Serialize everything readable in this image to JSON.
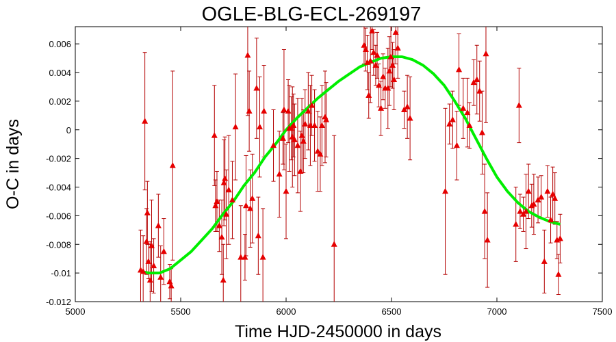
{
  "chart_data": {
    "type": "scatter",
    "title": "OGLE-BLG-ECL-269197",
    "xlabel": "Time HJD-2450000 in days",
    "ylabel": "O-C in days",
    "xlim": [
      5000,
      7500
    ],
    "ylim": [
      -0.012,
      0.0072
    ],
    "xticks": [
      5000,
      5500,
      6000,
      6500,
      7000,
      7500
    ],
    "xtick_labels": [
      "5000",
      "5500",
      "6000",
      "6500",
      "7000",
      "7500"
    ],
    "yticks": [
      -0.012,
      -0.01,
      -0.008,
      -0.006,
      -0.004,
      -0.002,
      0,
      0.002,
      0.004,
      0.006
    ],
    "ytick_labels": [
      "-0.012",
      "-0.01",
      "-0.008",
      "-0.006",
      "-0.004",
      "-0.002",
      "0",
      "0.002",
      "0.004",
      "0.006"
    ],
    "grid": false,
    "colors": {
      "points": "#e60000",
      "errorbars": "#b30000",
      "fit": "#00ee00"
    },
    "series": [
      {
        "kind": "points_with_errorbars",
        "x": [
          5310,
          5322,
          5330,
          5338,
          5342,
          5347,
          5355,
          5362,
          5372,
          5394,
          5405,
          5420,
          5448,
          5455,
          5462,
          5660,
          5665,
          5672,
          5683,
          5695,
          5702,
          5705,
          5710,
          5716,
          5728,
          5745,
          5760,
          5785,
          5805,
          5810,
          5818,
          5825,
          5830,
          5840,
          5860,
          5868,
          5875,
          5890,
          5895,
          5940,
          5968,
          5985,
          5990,
          6000,
          6010,
          6015,
          6025,
          6030,
          6035,
          6040,
          6055,
          6068,
          6075,
          6082,
          6090,
          6105,
          6115,
          6122,
          6135,
          6150,
          6162,
          6170,
          6185,
          6190,
          6228,
          6370,
          6378,
          6385,
          6392,
          6400,
          6408,
          6415,
          6425,
          6432,
          6440,
          6450,
          6460,
          6470,
          6483,
          6490,
          6497,
          6505,
          6512,
          6520,
          6530,
          6560,
          6575,
          6588,
          6755,
          6775,
          6790,
          6810,
          6820,
          6840,
          6860,
          6870,
          6890,
          6905,
          6918,
          6930,
          6942,
          6948,
          6955,
          7090,
          7105,
          7110,
          7125,
          7138,
          7150,
          7165,
          7175,
          7195,
          7210,
          7225,
          7240,
          7255,
          7265,
          7275,
          7285,
          7292,
          7300
        ],
        "y": [
          -0.0098,
          -0.0099,
          0.0006,
          -0.0078,
          -0.0058,
          -0.0092,
          -0.0105,
          -0.0081,
          -0.0095,
          -0.0067,
          -0.0103,
          -0.0085,
          -0.0106,
          -0.0109,
          -0.0025,
          -0.0004,
          -0.0053,
          -0.005,
          -0.0067,
          -0.0075,
          -0.0105,
          -0.0037,
          -0.0034,
          -0.0059,
          -0.0042,
          -0.0049,
          0.0002,
          -0.0089,
          -0.0089,
          -0.0053,
          0.0052,
          0.0013,
          -0.0055,
          -0.0048,
          0.0029,
          -0.0074,
          0.0002,
          -0.0089,
          0.0013,
          -0.0011,
          -0.0031,
          -0.0006,
          0.0014,
          -0.0043,
          0.0013,
          0.0001,
          0.0001,
          -0.0005,
          0.0003,
          -0.0007,
          -0.0011,
          -0.0029,
          -0.0004,
          -0.0008,
          0.0004,
          0.0013,
          0.0003,
          0.0017,
          0.0003,
          -0.0015,
          -0.0017,
          0.0003,
          0.0009,
          0.0007,
          -0.008,
          0.0059,
          0.0056,
          0.0047,
          0.0024,
          0.0048,
          0.0069,
          0.0054,
          0.0045,
          0.0052,
          0.0031,
          0.0015,
          0.0037,
          0.0029,
          0.0029,
          0.0041,
          0.0051,
          0.0045,
          0.0035,
          0.0068,
          0.0057,
          0.0014,
          0.0016,
          0.0008,
          -0.0043,
          0.0004,
          0.0007,
          -0.0011,
          0.0042,
          0.0015,
          0.0012,
          0.0003,
          0.0033,
          0.0035,
          0.0027,
          -0.0002,
          -0.0057,
          0.0053,
          -0.0077,
          -0.0066,
          0.0017,
          -0.0057,
          -0.0059,
          -0.0057,
          -0.0043,
          -0.0053,
          -0.0052,
          -0.0049,
          -0.0047,
          -0.0092,
          -0.0043,
          -0.0063,
          -0.0045,
          -0.0048,
          -0.0077,
          -0.0101,
          -0.0076
        ],
        "yerr": [
          0.0028,
          0.0025,
          0.0048,
          0.0023,
          0.0022,
          0.0012,
          0.0027,
          0.0032,
          0.0019,
          0.0022,
          0.0022,
          0.0023,
          0.0012,
          0.0012,
          0.0066,
          0.0035,
          0.0018,
          0.0021,
          0.0018,
          0.0026,
          0.0025,
          0.003,
          0.0029,
          0.0031,
          0.0038,
          0.0027,
          0.0037,
          0.0036,
          0.0016,
          0.0035,
          0.0042,
          0.0028,
          0.0027,
          0.0031,
          0.0035,
          0.0027,
          0.0035,
          0.0034,
          0.0032,
          0.0025,
          0.003,
          0.0018,
          0.0042,
          0.0033,
          0.0022,
          0.003,
          0.0022,
          0.0035,
          0.0022,
          0.0025,
          0.0033,
          0.0028,
          0.0026,
          0.0022,
          0.0024,
          0.0027,
          0.0028,
          0.0021,
          0.0025,
          0.0028,
          0.0026,
          0.0028,
          0.0032,
          0.0026,
          0.0076,
          0.0013,
          0.0015,
          0.0019,
          0.0016,
          0.0029,
          0.0013,
          0.0016,
          0.0014,
          0.0016,
          0.0015,
          0.0019,
          0.0016,
          0.0014,
          0.0028,
          0.0024,
          0.0021,
          0.0016,
          0.0021,
          0.0022,
          0.0021,
          0.0013,
          0.0022,
          0.0029,
          0.0058,
          0.0014,
          0.002,
          0.0024,
          0.0025,
          0.0021,
          0.0024,
          0.0016,
          0.0016,
          0.0024,
          0.0021,
          0.0029,
          0.0033,
          0.0048,
          0.0033,
          0.0026,
          0.0026,
          0.0012,
          0.0012,
          0.0026,
          0.0019,
          0.0015,
          0.0021,
          0.0016,
          0.0015,
          0.0022,
          0.0018,
          0.0016,
          0.0019,
          0.0018,
          0.0013,
          0.0014,
          0.0017
        ]
      },
      {
        "kind": "fit_curve",
        "x": [
          5310,
          5350,
          5400,
          5450,
          5500,
          5550,
          5600,
          5650,
          5700,
          5750,
          5800,
          5850,
          5900,
          5950,
          6000,
          6050,
          6100,
          6150,
          6200,
          6250,
          6300,
          6350,
          6400,
          6450,
          6500,
          6550,
          6600,
          6650,
          6700,
          6750,
          6800,
          6850,
          6900,
          6950,
          7000,
          7050,
          7100,
          7150,
          7200,
          7250,
          7300
        ],
        "y": [
          -0.0099,
          -0.01,
          -0.01,
          -0.0097,
          -0.0091,
          -0.0085,
          -0.0077,
          -0.0069,
          -0.0059,
          -0.005,
          -0.0039,
          -0.003,
          -0.0019,
          -0.001,
          0.0,
          0.0008,
          0.0015,
          0.0022,
          0.0028,
          0.0034,
          0.0039,
          0.0044,
          0.0047,
          0.005,
          0.0051,
          0.0051,
          0.0049,
          0.0045,
          0.0039,
          0.0031,
          0.002,
          0.0008,
          -0.0006,
          -0.002,
          -0.0033,
          -0.0043,
          -0.0051,
          -0.0057,
          -0.0061,
          -0.0064,
          -0.0066
        ]
      }
    ]
  }
}
